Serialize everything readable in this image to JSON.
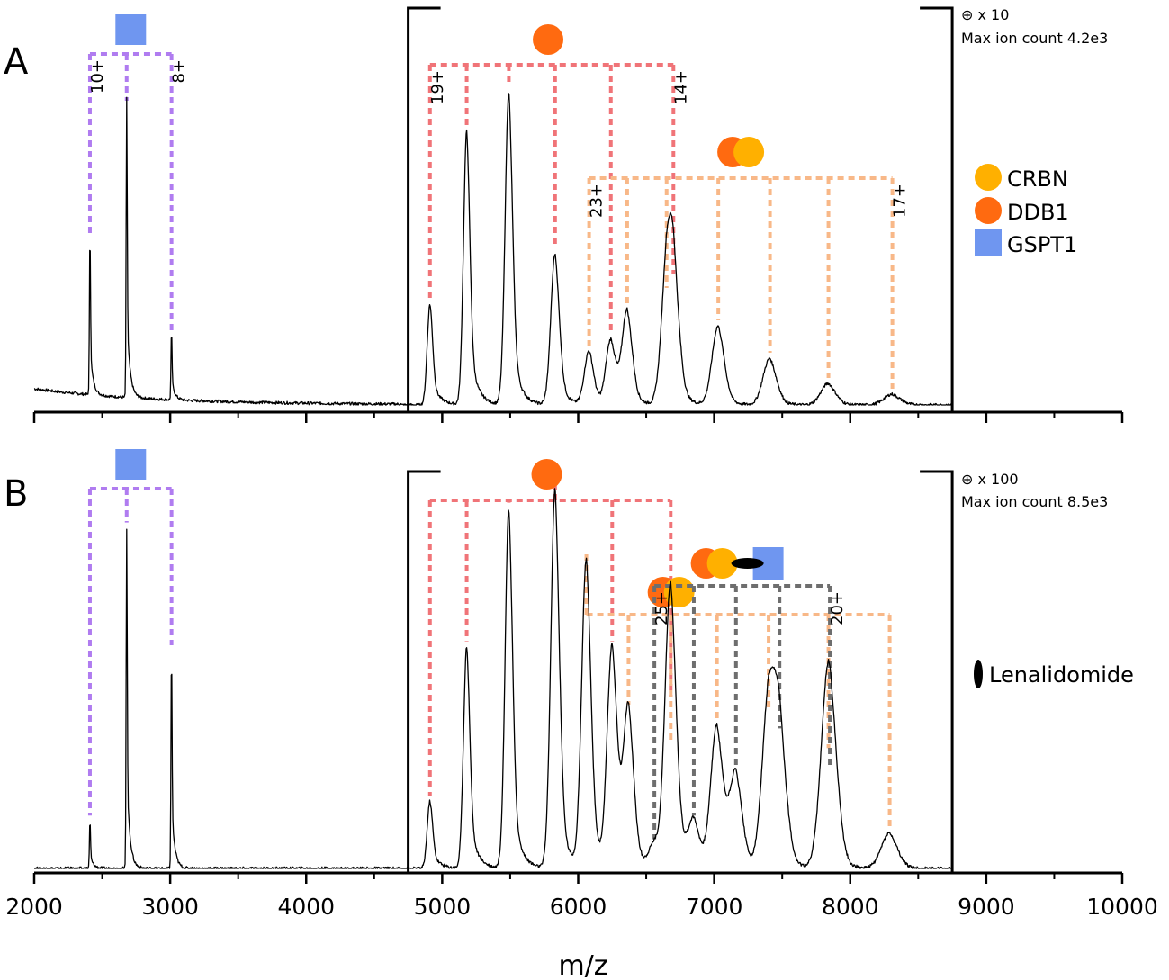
{
  "figure": {
    "xlabel": "m/z"
  },
  "legend": {
    "items": [
      {
        "label": "CRBN",
        "color": "#ffb000",
        "shape": "circle"
      },
      {
        "label": "DDB1",
        "color": "#ff6a10",
        "shape": "circle"
      },
      {
        "label": "GSPT1",
        "color": "#6f96f0",
        "shape": "square"
      }
    ],
    "ligand": {
      "label": "Lenalidomide",
      "color": "#000000",
      "shape": "ellipse"
    }
  },
  "colors": {
    "gspt1_series": "#b07cf0",
    "ddb1_series": "#f07478",
    "crbn_ddb1_series": "#f8b888",
    "ternary_series": "#6e6e6e",
    "spectrum": "#000000"
  },
  "chart_data": [
    {
      "type": "line",
      "panel_label": "A",
      "zoom_note": "⊕ x 10",
      "max_ion_count": "Max ion count  4.2e3",
      "xlim": [
        2000,
        10000
      ],
      "ticks": [
        2000,
        3000,
        4000,
        5000,
        6000,
        7000,
        8000,
        9000,
        10000
      ],
      "zoom_region": [
        4750,
        8750
      ],
      "series": [
        {
          "key": "gspt1",
          "peaks": [
            [
              2410,
              0.45
            ],
            [
              2680,
              0.83
            ],
            [
              3010,
              0.19
            ]
          ],
          "charge_labels": [
            "10+",
            "8+"
          ]
        },
        {
          "key": "ddb1",
          "peaks": [
            [
              4910,
              0.28
            ],
            [
              5180,
              0.76
            ],
            [
              5490,
              0.87
            ],
            [
              5830,
              0.42
            ],
            [
              6240,
              0.18
            ],
            [
              6700,
              0.35
            ]
          ],
          "charge_labels": [
            "19+",
            "14+"
          ]
        },
        {
          "key": "crbn_ddb1",
          "peaks": [
            [
              6080,
              0.15
            ],
            [
              6360,
              0.26
            ],
            [
              6650,
              0.31
            ],
            [
              7030,
              0.22
            ],
            [
              7410,
              0.13
            ],
            [
              7840,
              0.06
            ],
            [
              8310,
              0.03
            ]
          ],
          "charge_labels": [
            "23+",
            "17+"
          ]
        }
      ]
    },
    {
      "type": "line",
      "panel_label": "B",
      "zoom_note": "⊕ x 100",
      "max_ion_count": "Max ion count  8.5e3",
      "xlim": [
        2000,
        10000
      ],
      "ticks": [
        2000,
        3000,
        4000,
        5000,
        6000,
        7000,
        8000,
        9000,
        10000
      ],
      "tick_labels": [
        "2000",
        "3000",
        "4000",
        "5000",
        "6000",
        "7000",
        "8000",
        "9000",
        "10000"
      ],
      "zoom_region": [
        4750,
        8750
      ],
      "series": [
        {
          "key": "gspt1",
          "peaks": [
            [
              2410,
              0.12
            ],
            [
              2680,
              0.86
            ],
            [
              3010,
              0.55
            ]
          ],
          "charge_labels": []
        },
        {
          "key": "ddb1",
          "peaks": [
            [
              4910,
              0.17
            ],
            [
              5180,
              0.56
            ],
            [
              5490,
              0.91
            ],
            [
              5830,
              0.96
            ],
            [
              6250,
              0.56
            ],
            [
              6680,
              0.42
            ]
          ],
          "charge_labels": []
        },
        {
          "key": "crbn_ddb1",
          "peaks": [
            [
              6060,
              0.78
            ],
            [
              6370,
              0.4
            ],
            [
              6680,
              0.3
            ],
            [
              7020,
              0.36
            ],
            [
              7400,
              0.39
            ],
            [
              7840,
              0.29
            ],
            [
              8290,
              0.09
            ]
          ],
          "charge_labels": []
        },
        {
          "key": "ternary",
          "peaks": [
            [
              6560,
              0.06
            ],
            [
              6850,
              0.12
            ],
            [
              7160,
              0.24
            ],
            [
              7480,
              0.34
            ],
            [
              7850,
              0.24
            ]
          ],
          "charge_labels": [
            "25+",
            "20+"
          ]
        }
      ]
    }
  ]
}
